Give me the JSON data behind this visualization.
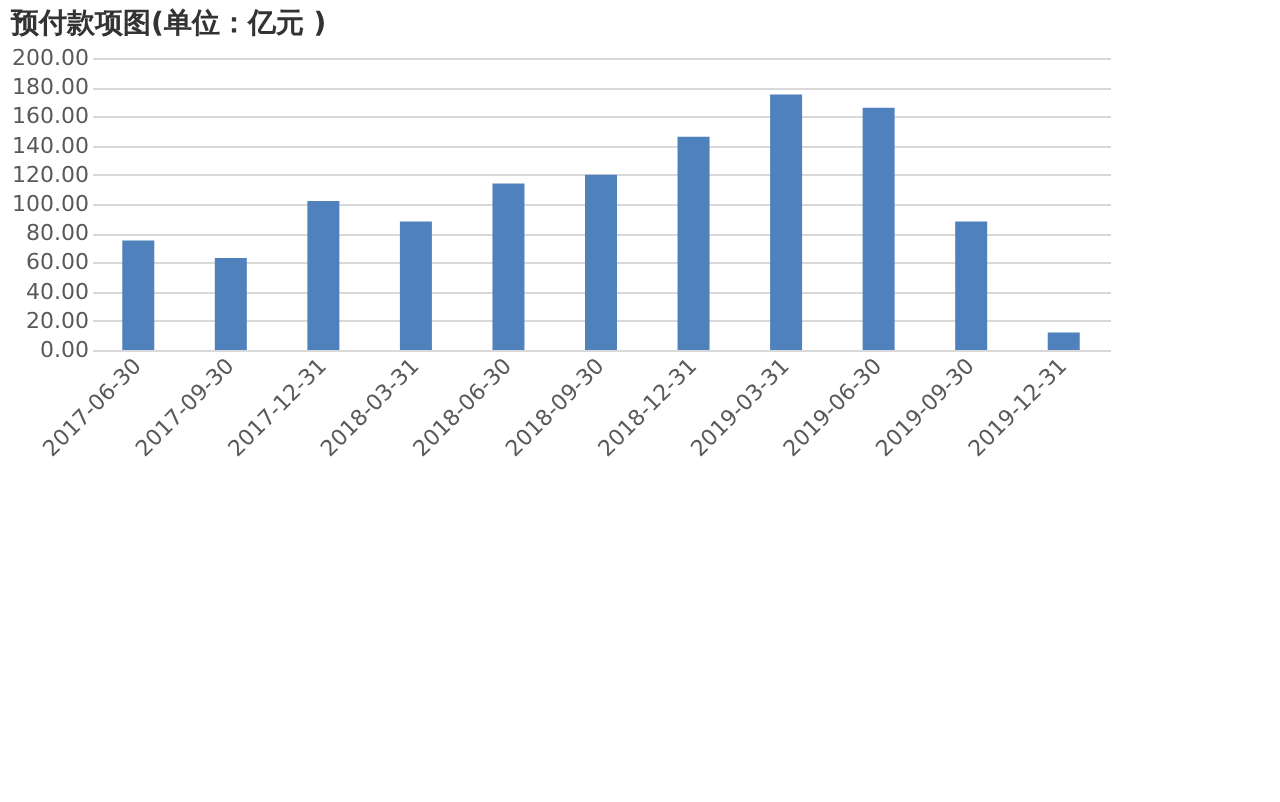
{
  "chart_data": {
    "type": "bar",
    "title": "预付款项图(单位：亿元 )",
    "categories": [
      "2017-06-30",
      "2017-09-30",
      "2017-12-31",
      "2018-03-31",
      "2018-06-30",
      "2018-09-30",
      "2018-12-31",
      "2019-03-31",
      "2019-06-30",
      "2019-09-30",
      "2019-12-31"
    ],
    "values": [
      75,
      63,
      102,
      88,
      114,
      120,
      146,
      175,
      166,
      88,
      12
    ],
    "color": "#4f81bd",
    "ylim": [
      0,
      200
    ],
    "yticks": [
      {
        "value": 0,
        "label": "0.00"
      },
      {
        "value": 20,
        "label": "20.00"
      },
      {
        "value": 40,
        "label": "40.00"
      },
      {
        "value": 60,
        "label": "60.00"
      },
      {
        "value": 80,
        "label": "80.00"
      },
      {
        "value": 100,
        "label": "100.00"
      },
      {
        "value": 120,
        "label": "120.00"
      },
      {
        "value": 140,
        "label": "140.00"
      },
      {
        "value": 160,
        "label": "160.00"
      },
      {
        "value": 180,
        "label": "180.00"
      },
      {
        "value": 200,
        "label": "200.00"
      }
    ],
    "grid": "y"
  }
}
